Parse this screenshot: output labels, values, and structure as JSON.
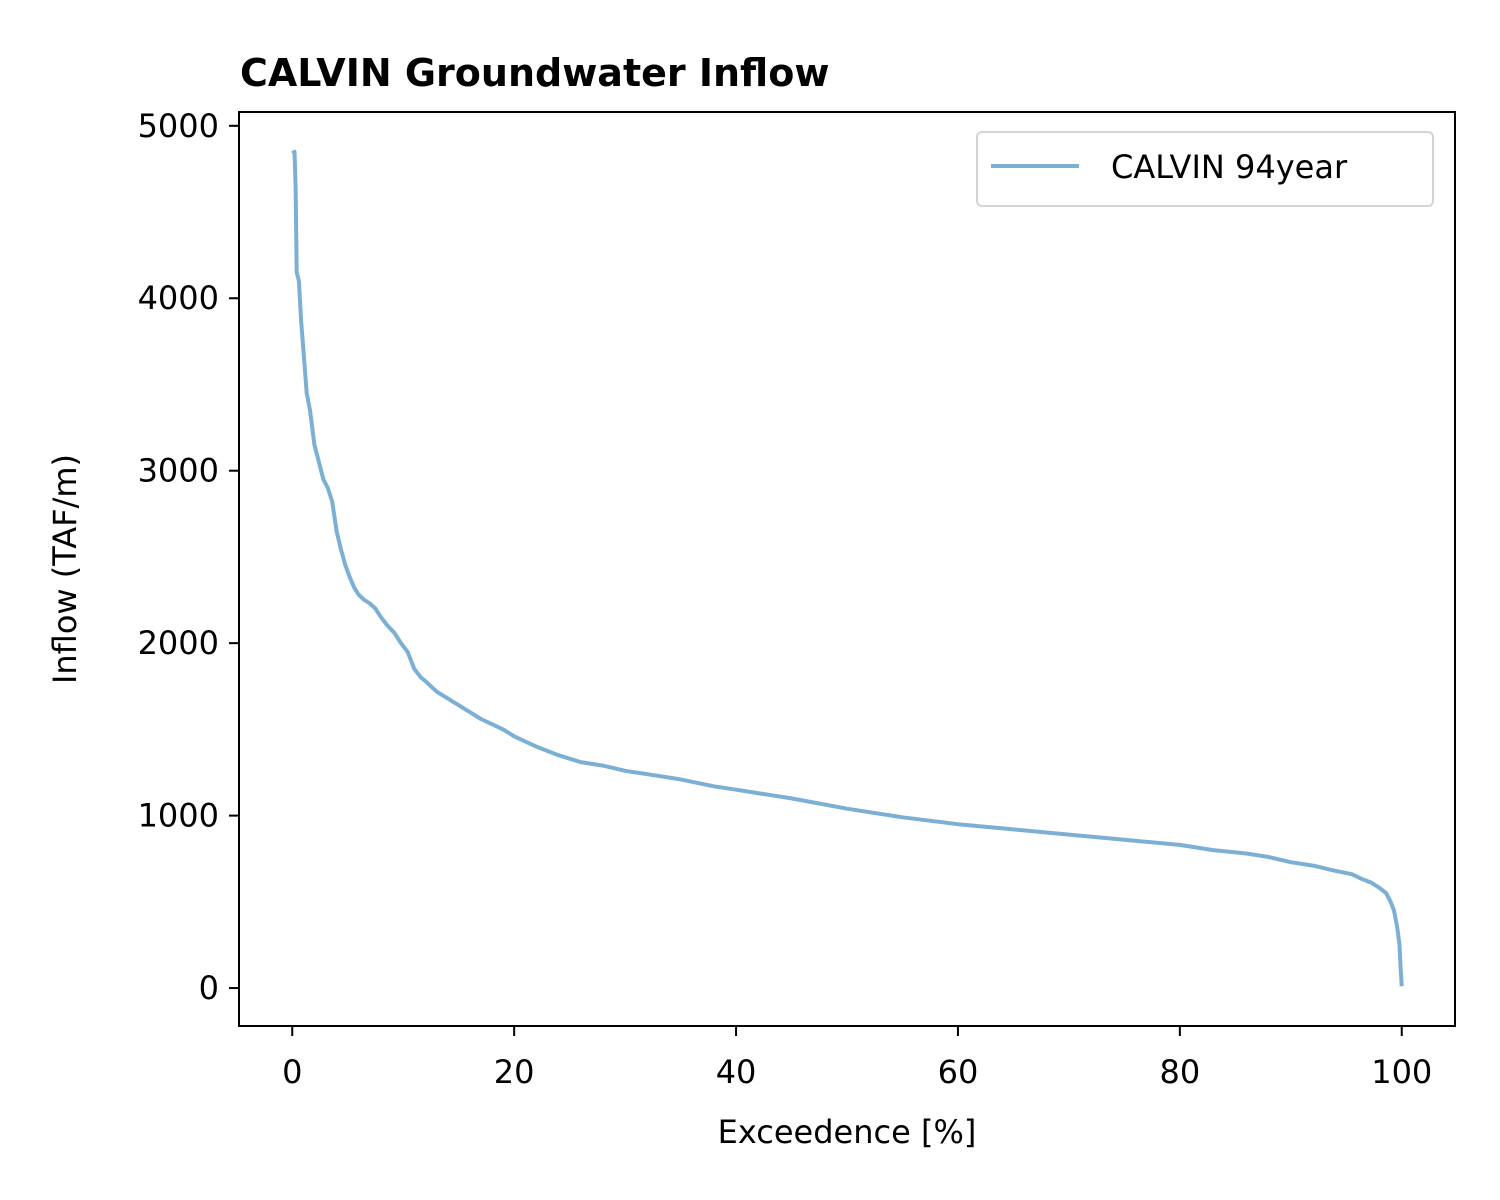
{
  "chart_data": {
    "type": "line",
    "title": "CALVIN Groundwater Inflow",
    "xlabel": "Exceedence [%]",
    "ylabel": "Inflow (TAF/m)",
    "xlim": [
      -4.8,
      104.8
    ],
    "ylim": [
      -220,
      5080
    ],
    "xticks": [
      0,
      20,
      40,
      60,
      80,
      100
    ],
    "yticks": [
      0,
      1000,
      2000,
      3000,
      4000,
      5000
    ],
    "grid": false,
    "legend_position": "top-right",
    "series": [
      {
        "name": "CALVIN 94year",
        "color": "#7bafd4",
        "x": [
          0,
          0.2,
          0.3,
          0.4,
          0.6,
          0.8,
          1.0,
          1.3,
          1.6,
          2.0,
          2.4,
          2.8,
          3.2,
          3.6,
          4.0,
          4.4,
          4.8,
          5.2,
          5.6,
          6.0,
          6.5,
          7.0,
          7.5,
          8.0,
          8.6,
          9.2,
          9.8,
          10.4,
          11.0,
          11.6,
          12.0,
          12.5,
          13.0,
          13.5,
          14.0,
          14.5,
          15.0,
          15.5,
          16.0,
          17.0,
          18.0,
          19.0,
          20.0,
          21.0,
          22.0,
          24.0,
          26.0,
          28.0,
          30.0,
          32.0,
          35.0,
          38.0,
          40.0,
          45.0,
          50.0,
          55.0,
          60.0,
          65.0,
          70.0,
          75.0,
          80.0,
          83.0,
          86.0,
          88.0,
          90.0,
          92.0,
          94.0,
          95.5,
          96.5,
          97.3,
          98.0,
          98.6,
          99.0,
          99.3,
          99.6,
          99.8,
          99.9,
          100.0
        ],
        "y": [
          4840,
          4850,
          4650,
          4150,
          4100,
          3870,
          3700,
          3450,
          3350,
          3150,
          3050,
          2950,
          2900,
          2820,
          2650,
          2540,
          2450,
          2380,
          2320,
          2280,
          2250,
          2230,
          2200,
          2150,
          2100,
          2060,
          2000,
          1950,
          1850,
          1800,
          1780,
          1750,
          1720,
          1700,
          1680,
          1660,
          1640,
          1620,
          1600,
          1560,
          1530,
          1500,
          1460,
          1430,
          1400,
          1350,
          1310,
          1290,
          1260,
          1240,
          1210,
          1170,
          1150,
          1100,
          1040,
          990,
          950,
          920,
          890,
          860,
          830,
          800,
          780,
          760,
          730,
          710,
          680,
          660,
          630,
          610,
          580,
          550,
          500,
          450,
          350,
          250,
          120,
          10
        ]
      }
    ]
  }
}
